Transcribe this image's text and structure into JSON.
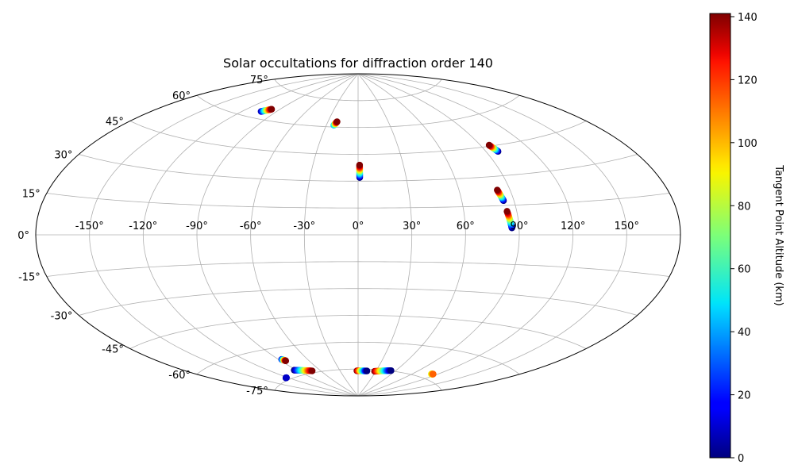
{
  "chart_data": {
    "type": "scatter",
    "title": "Solar occultations for diffraction order 140",
    "projection": "aitoff",
    "grid": true,
    "x_ticks": [
      -150,
      -120,
      -90,
      -60,
      -30,
      0,
      30,
      60,
      90,
      120,
      150
    ],
    "y_ticks": [
      75,
      60,
      45,
      30,
      15,
      0,
      -15,
      -30,
      -45,
      -60,
      -75
    ],
    "x_tick_labels": [
      "-150°",
      "-120°",
      "-90°",
      "-60°",
      "-30°",
      "0°",
      "30°",
      "60°",
      "90°",
      "120°",
      "150°"
    ],
    "y_tick_labels": [
      "75°",
      "60°",
      "45°",
      "30°",
      "15°",
      "0°",
      "-15°",
      "-30°",
      "-45°",
      "-60°",
      "-75°"
    ],
    "colorbar": {
      "label": "Tangent Point Altitude (km)",
      "range": [
        0,
        141
      ],
      "ticks": [
        0,
        20,
        40,
        60,
        80,
        100,
        120,
        140
      ],
      "tick_labels": [
        "0",
        "20",
        "40",
        "60",
        "80",
        "100",
        "120",
        "140"
      ],
      "colormap": "jet"
    },
    "series": [
      {
        "x": [
          -104,
          -98
        ],
        "y": [
          63.5,
          65.5
        ],
        "c": [
          5,
          141
        ]
      },
      {
        "x": [
          -23,
          -21
        ],
        "y": [
          61,
          63
        ],
        "c": [
          40,
          141
        ]
      },
      {
        "x": [
          1,
          1
        ],
        "y": [
          32,
          39
        ],
        "c": [
          0,
          141
        ]
      },
      {
        "x": [
          98,
          96
        ],
        "y": [
          42,
          45.5
        ],
        "c": [
          0,
          141
        ]
      },
      {
        "x": [
          84,
          82.5
        ],
        "y": [
          17.5,
          23
        ],
        "c": [
          0,
          141
        ]
      },
      {
        "x": [
          86,
          84.5
        ],
        "y": [
          3.5,
          12
        ],
        "c": [
          0,
          141
        ]
      },
      {
        "x": [
          -87,
          -85
        ],
        "y": [
          -66,
          -67
        ],
        "c": [
          10,
          141
        ]
      },
      {
        "x": [
          -123,
          -122
        ],
        "y": [
          -74,
          -74
        ],
        "c": [
          5,
          10
        ]
      },
      {
        "x": [
          -93,
          -72
        ],
        "y": [
          -72,
          -74
        ],
        "c": [
          0,
          141
        ]
      },
      {
        "x": [
          -2,
          15
        ],
        "y": [
          -76,
          -76
        ],
        "c": [
          141,
          0
        ]
      },
      {
        "x": [
          28,
          53
        ],
        "y": [
          -76,
          -74.8
        ],
        "c": [
          141,
          0
        ]
      },
      {
        "x": [
          113,
          115
        ],
        "y": [
          -72.5,
          -72.3
        ],
        "c": [
          80,
          110
        ]
      }
    ]
  }
}
